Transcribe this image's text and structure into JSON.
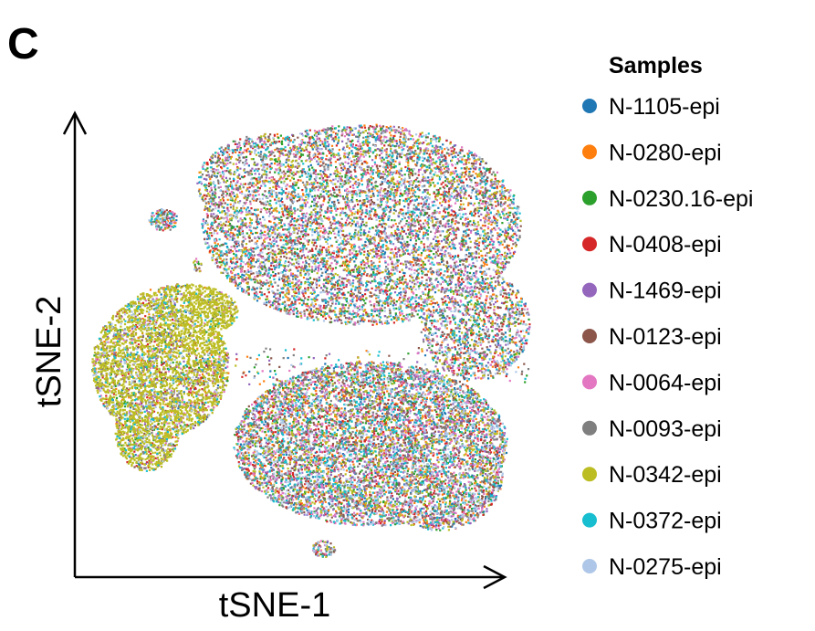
{
  "panel_label": "C",
  "chart_data": {
    "type": "scatter",
    "title": "",
    "xlabel": "tSNE-1",
    "ylabel": "tSNE-2",
    "axis_ticks": false,
    "grid": false,
    "legend_title": "Samples",
    "legend_position": "right",
    "series": [
      {
        "name": "N-1105-epi",
        "color": "#1f77b4"
      },
      {
        "name": "N-0280-epi",
        "color": "#ff7f0e"
      },
      {
        "name": "N-0230.16-epi",
        "color": "#2ca02c"
      },
      {
        "name": "N-0408-epi",
        "color": "#d62728"
      },
      {
        "name": "N-1469-epi",
        "color": "#9467bd"
      },
      {
        "name": "N-0123-epi",
        "color": "#8c564b"
      },
      {
        "name": "N-0064-epi",
        "color": "#e377c2"
      },
      {
        "name": "N-0093-epi",
        "color": "#7f7f7f"
      },
      {
        "name": "N-0342-epi",
        "color": "#bcbd22"
      },
      {
        "name": "N-0372-epi",
        "color": "#17becf"
      },
      {
        "name": "N-0275-epi",
        "color": "#aec7e8"
      }
    ]
  }
}
